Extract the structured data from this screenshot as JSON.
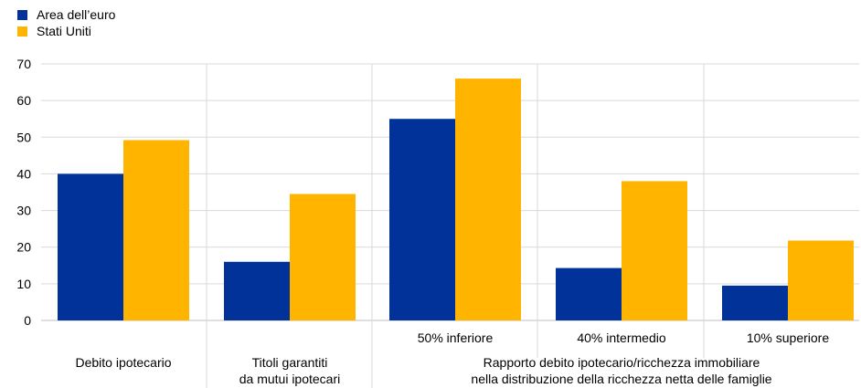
{
  "legend": [
    {
      "label": "Area dell’euro",
      "color": "#003299"
    },
    {
      "label": "Stati Uniti",
      "color": "#FFB400"
    }
  ],
  "chart_data": {
    "type": "bar",
    "categories": [
      "Debito ipotecario",
      "Titoli garantiti da mutui ipotecari",
      "50% inferiore",
      "40% intermedio",
      "10% superiore"
    ],
    "category_lines": [
      [
        "Debito ipotecario"
      ],
      [
        "Titoli garantiti",
        "da mutui ipotecari"
      ],
      [
        "50% inferiore"
      ],
      [
        "40% intermedio"
      ],
      [
        "10% superiore"
      ]
    ],
    "group_label": [
      "Rapporto debito ipotecario/ricchezza immobiliare",
      "nella distribuzione della ricchezza netta delle famiglie"
    ],
    "series": [
      {
        "name": "Area dell’euro",
        "color": "#003299",
        "values": [
          40,
          16,
          55,
          14.3,
          9.5
        ]
      },
      {
        "name": "Stati Uniti",
        "color": "#FFB400",
        "values": [
          49.2,
          34.5,
          66,
          38,
          21.8
        ]
      }
    ],
    "yticks": [
      0,
      10,
      20,
      30,
      40,
      50,
      60,
      70
    ],
    "ylim": [
      0,
      70
    ],
    "grid": true,
    "legend_position": "top-left"
  }
}
